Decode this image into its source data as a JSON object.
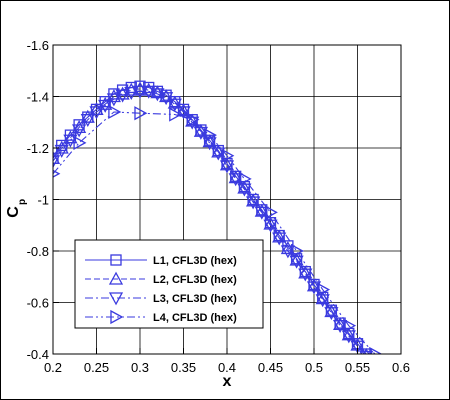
{
  "chart_data": {
    "type": "line",
    "title": "",
    "xlabel": "x",
    "ylabel_main": "C",
    "ylabel_sub": "p",
    "xlim": [
      0.2,
      0.6
    ],
    "ylim": [
      -0.4,
      -1.6
    ],
    "y_reversed": true,
    "grid": true,
    "legend_position": "lower-left",
    "x_ticks": [
      "0.2",
      "0.25",
      "0.3",
      "0.35",
      "0.4",
      "0.45",
      "0.5",
      "0.55",
      "0.6"
    ],
    "y_ticks": [
      "-0.4",
      "-0.6",
      "-0.8",
      "-1",
      "-1.2",
      "-1.4",
      "-1.6"
    ],
    "line_color": "#3a3adf",
    "series": [
      {
        "name": "L1, CFL3D (hex)",
        "marker": "square",
        "dash": "solid",
        "x": [
          0.2,
          0.21,
          0.22,
          0.23,
          0.24,
          0.25,
          0.26,
          0.27,
          0.28,
          0.29,
          0.3,
          0.31,
          0.32,
          0.33,
          0.34,
          0.35,
          0.36,
          0.37,
          0.38,
          0.39,
          0.4,
          0.41,
          0.42,
          0.43,
          0.44,
          0.45,
          0.46,
          0.47,
          0.48,
          0.49,
          0.5,
          0.51,
          0.52,
          0.53,
          0.54,
          0.55,
          0.56
        ],
        "y": [
          -1.16,
          -1.21,
          -1.25,
          -1.29,
          -1.32,
          -1.35,
          -1.38,
          -1.41,
          -1.425,
          -1.435,
          -1.44,
          -1.435,
          -1.42,
          -1.405,
          -1.38,
          -1.35,
          -1.31,
          -1.27,
          -1.23,
          -1.19,
          -1.14,
          -1.09,
          -1.05,
          -1.0,
          -0.96,
          -0.91,
          -0.86,
          -0.82,
          -0.77,
          -0.72,
          -0.67,
          -0.62,
          -0.57,
          -0.52,
          -0.48,
          -0.44,
          -0.4
        ]
      },
      {
        "name": "L2, CFL3D (hex)",
        "marker": "triangle-up",
        "dash": "dashed",
        "x": [
          0.2,
          0.21,
          0.22,
          0.23,
          0.24,
          0.25,
          0.26,
          0.27,
          0.28,
          0.29,
          0.3,
          0.31,
          0.32,
          0.33,
          0.34,
          0.35,
          0.36,
          0.37,
          0.38,
          0.39,
          0.4,
          0.41,
          0.42,
          0.43,
          0.44,
          0.45,
          0.46,
          0.47,
          0.48,
          0.49,
          0.5,
          0.51,
          0.52,
          0.53,
          0.54,
          0.55,
          0.56
        ],
        "y": [
          -1.16,
          -1.2,
          -1.24,
          -1.28,
          -1.32,
          -1.35,
          -1.37,
          -1.4,
          -1.41,
          -1.425,
          -1.43,
          -1.425,
          -1.415,
          -1.4,
          -1.375,
          -1.345,
          -1.305,
          -1.265,
          -1.225,
          -1.185,
          -1.135,
          -1.085,
          -1.045,
          -0.995,
          -0.955,
          -0.905,
          -0.855,
          -0.81,
          -0.765,
          -0.715,
          -0.665,
          -0.615,
          -0.565,
          -0.515,
          -0.475,
          -0.435,
          -0.395
        ]
      },
      {
        "name": "L3, CFL3D (hex)",
        "marker": "triangle-down",
        "dash": "dashdot",
        "x": [
          0.2,
          0.21,
          0.22,
          0.23,
          0.24,
          0.25,
          0.26,
          0.27,
          0.28,
          0.29,
          0.3,
          0.31,
          0.32,
          0.33,
          0.34,
          0.35,
          0.36,
          0.37,
          0.38,
          0.39,
          0.4,
          0.41,
          0.42,
          0.43,
          0.44,
          0.45,
          0.46,
          0.47,
          0.48,
          0.49,
          0.5,
          0.51,
          0.52,
          0.53,
          0.54,
          0.55,
          0.56
        ],
        "y": [
          -1.15,
          -1.19,
          -1.23,
          -1.27,
          -1.31,
          -1.34,
          -1.365,
          -1.39,
          -1.405,
          -1.415,
          -1.42,
          -1.42,
          -1.41,
          -1.395,
          -1.37,
          -1.34,
          -1.3,
          -1.26,
          -1.22,
          -1.18,
          -1.13,
          -1.08,
          -1.04,
          -0.99,
          -0.95,
          -0.9,
          -0.85,
          -0.8,
          -0.76,
          -0.71,
          -0.66,
          -0.61,
          -0.56,
          -0.51,
          -0.47,
          -0.43,
          -0.39
        ]
      },
      {
        "name": "L4, CFL3D (hex)",
        "marker": "triangle-right",
        "dash": "dashdotdot",
        "x": [
          0.2,
          0.23,
          0.27,
          0.3,
          0.34,
          0.36,
          0.38,
          0.4,
          0.42,
          0.45,
          0.48,
          0.51,
          0.54,
          0.57
        ],
        "y": [
          -1.1,
          -1.22,
          -1.34,
          -1.335,
          -1.33,
          -1.31,
          -1.25,
          -1.17,
          -1.08,
          -0.95,
          -0.8,
          -0.65,
          -0.51,
          -0.4
        ]
      }
    ]
  }
}
